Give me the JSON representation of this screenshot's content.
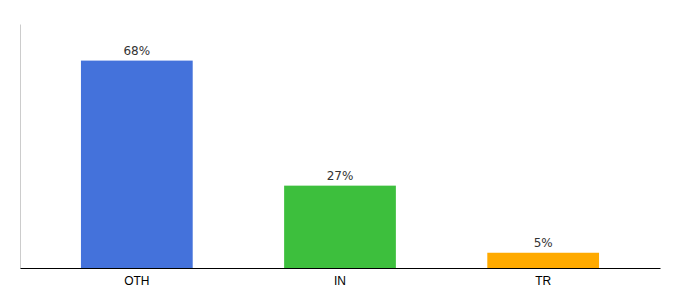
{
  "chart_data": {
    "type": "bar",
    "categories": [
      "OTH",
      "IN",
      "TR"
    ],
    "values": [
      68,
      27,
      5
    ],
    "value_labels": [
      "68%",
      "27%",
      "5%"
    ],
    "colors": [
      "#4472db",
      "#3dbf3d",
      "#ffaa00"
    ],
    "ylim": [
      0,
      80
    ],
    "data_labels": true,
    "tick_labels": "x",
    "grid": false
  }
}
